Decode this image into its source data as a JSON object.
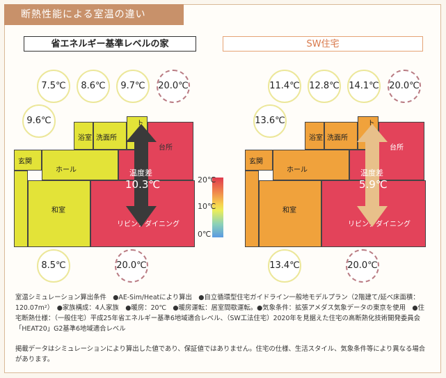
{
  "banner": "断熱性能による室温の違い",
  "left_tab": "省エネルギー基準レベルの家",
  "right_tab": "SW住宅",
  "left": {
    "temps": {
      "t1": "7.5℃",
      "t2": "8.6℃",
      "t3": "9.7℃",
      "out": "20.0℃",
      "genkan": "9.6℃",
      "washitsu": "8.5℃",
      "living": "20.0℃"
    },
    "diff_label": "温度差",
    "diff_value": "10.3℃"
  },
  "right": {
    "temps": {
      "t1": "11.4℃",
      "t2": "12.8℃",
      "t3": "14.1℃",
      "out": "20.0℃",
      "genkan": "13.6℃",
      "washitsu": "13.4℃",
      "living": "20.0℃"
    },
    "diff_label": "温度差",
    "diff_value": "5.9℃"
  },
  "rooms": {
    "yokushitsu": "浴室",
    "senmen": "洗面所",
    "toilet": "トイレ",
    "daidokoro": "台所",
    "genkan": "玄関",
    "hall": "ホール",
    "washitsu": "和室",
    "living": "リビングダイニング"
  },
  "legend": {
    "top": "20℃",
    "mid": "10℃",
    "bottom": "0℃"
  },
  "notes": {
    "p1": "室温シミュレーション算出条件　●AE-Sim/Heatにより算出　●自立循環型住宅ガイドライン一般地モデルプラン（2階建て/延べ床面積：120.07m²）　●家族構成：4人家族　●暖房：20℃　●暖房運転：居室間歇運転。●気象条件：拡張アメダス気象データの東京を使用　●住宅断熱仕様：（一般住宅）平成25年省エネルギー基準6地域適合レベル、（SW工法住宅）2020年を見据えた住宅の高断熱化技術開発委員会「HEAT20」G2基準6地域適合レベル",
    "p2": "掲載データはシミュレーションにより算出した値であり、保証値ではありません。住宅の仕様、生活スタイル、気象条件等により異なる場合があります。"
  },
  "colors": {
    "banner": "#c8916a",
    "left_yellow": "#e3e338",
    "red": "#e3435a",
    "orange": "#f0a23c",
    "dark_arrow": "#3a3a3a",
    "light_arrow": "#e8c08a"
  }
}
